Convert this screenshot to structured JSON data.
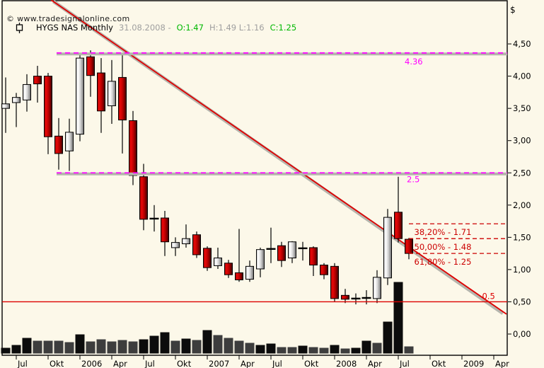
{
  "header": {
    "symbol": "HYGS NAS Monthly",
    "date_label": "31.08.2008 -",
    "open_label": "O:1.47",
    "high_low_label": "H:1.49 L:1.16",
    "close_label": "C:1.25",
    "copyright": "© www.tradesignalonline.com"
  },
  "colors": {
    "background": "#fcf8e9",
    "border": "#000000",
    "text": "#000000",
    "muted_text": "#9f9f9f",
    "green_text": "#00b800",
    "wick": "#000000",
    "bull_body_stops": [
      "#c8c8c8",
      "#ffffff",
      "#d0d0d0",
      "#6e6e6e"
    ],
    "bear_body_stops": [
      "#a80000",
      "#e80808",
      "#b00000",
      "#3c0000"
    ],
    "trendline": "#e00000",
    "line_shadow": "#b5b5ad",
    "magenta_line": "#ff00ff",
    "fib_line": "#cc0000",
    "half_line": "#dd0000",
    "volume_black": "#0c0c0c",
    "volume_gray": "#3d3d3d"
  },
  "chart_data": {
    "type": "candlestick",
    "title": "HYGS NAS Monthly",
    "period_ohlc": {
      "date": "31.08.2008",
      "open": 1.47,
      "high": 1.49,
      "low": 1.16,
      "close": 1.25
    },
    "y_axis": {
      "unit": "$",
      "ticks": [
        {
          "label": "4,50",
          "value": 4.5
        },
        {
          "label": "4,00",
          "value": 4.0
        },
        {
          "label": "3,50",
          "value": 3.5
        },
        {
          "label": "3,00",
          "value": 3.0
        },
        {
          "label": "2,50",
          "value": 2.5
        },
        {
          "label": "2,00",
          "value": 2.0
        },
        {
          "label": "1,50",
          "value": 1.5
        },
        {
          "label": "1,00",
          "value": 1.0
        },
        {
          "label": "0,50",
          "value": 0.5
        },
        {
          "label": "0,00",
          "value": 0.0
        }
      ]
    },
    "x_axis": {
      "ticks": [
        {
          "label": "Jul",
          "index": 1
        },
        {
          "label": "Okt",
          "index": 4
        },
        {
          "label": "2006",
          "index": 7
        },
        {
          "label": "Apr",
          "index": 10
        },
        {
          "label": "Jul",
          "index": 13
        },
        {
          "label": "Okt",
          "index": 16
        },
        {
          "label": "2007",
          "index": 19
        },
        {
          "label": "Apr",
          "index": 22
        },
        {
          "label": "Jul",
          "index": 25
        },
        {
          "label": "Okt",
          "index": 28
        },
        {
          "label": "2008",
          "index": 31
        },
        {
          "label": "Apr",
          "index": 34
        },
        {
          "label": "Jul",
          "index": 37
        },
        {
          "label": "Okt",
          "index": 40
        },
        {
          "label": "2009",
          "index": 43
        },
        {
          "label": "Apr",
          "index": 46
        }
      ]
    },
    "candles": [
      {
        "m": "Jun 2005",
        "o": 3.5,
        "h": 3.98,
        "l": 3.12,
        "c": 3.57,
        "vol_h": 8,
        "vol_shade": "black"
      },
      {
        "m": "Jul 2005",
        "o": 3.59,
        "h": 3.74,
        "l": 3.21,
        "c": 3.67,
        "vol_h": 12,
        "vol_shade": "black"
      },
      {
        "m": "Aug 2005",
        "o": 3.63,
        "h": 4.03,
        "l": 3.45,
        "c": 3.87,
        "vol_h": 22,
        "vol_shade": "black"
      },
      {
        "m": "Sep 2005",
        "o": 4.0,
        "h": 4.16,
        "l": 3.59,
        "c": 3.88,
        "vol_h": 18,
        "vol_shade": "gray"
      },
      {
        "m": "Okt 2005",
        "o": 4.0,
        "h": 4.05,
        "l": 2.79,
        "c": 3.06,
        "vol_h": 18,
        "vol_shade": "gray"
      },
      {
        "m": "Nov 2005",
        "o": 3.07,
        "h": 3.35,
        "l": 2.55,
        "c": 2.8,
        "vol_h": 18,
        "vol_shade": "gray"
      },
      {
        "m": "Dez 2005",
        "o": 2.84,
        "h": 3.34,
        "l": 2.53,
        "c": 3.13,
        "vol_h": 16,
        "vol_shade": "gray"
      },
      {
        "m": "Jan 2006",
        "o": 3.1,
        "h": 4.36,
        "l": 2.99,
        "c": 4.28,
        "vol_h": 27,
        "vol_shade": "black"
      },
      {
        "m": "Feb 2006",
        "o": 4.3,
        "h": 4.4,
        "l": 3.68,
        "c": 4.01,
        "vol_h": 17,
        "vol_shade": "gray"
      },
      {
        "m": "Mär 2006",
        "o": 4.05,
        "h": 4.28,
        "l": 3.12,
        "c": 3.46,
        "vol_h": 20,
        "vol_shade": "gray"
      },
      {
        "m": "Apr 2006",
        "o": 3.54,
        "h": 4.25,
        "l": 3.26,
        "c": 3.92,
        "vol_h": 17,
        "vol_shade": "gray"
      },
      {
        "m": "Mai 2006",
        "o": 3.98,
        "h": 4.34,
        "l": 2.8,
        "c": 3.32,
        "vol_h": 19,
        "vol_shade": "gray"
      },
      {
        "m": "Jun 2006",
        "o": 3.31,
        "h": 3.46,
        "l": 2.31,
        "c": 2.46,
        "vol_h": 17,
        "vol_shade": "gray"
      },
      {
        "m": "Jul 2006",
        "o": 2.44,
        "h": 2.64,
        "l": 1.61,
        "c": 1.78,
        "vol_h": 20,
        "vol_shade": "black"
      },
      {
        "m": "Aug 2006",
        "o": 1.8,
        "h": 2.0,
        "l": 1.59,
        "c": 1.78,
        "vol_h": 25,
        "vol_shade": "black"
      },
      {
        "m": "Sep 2006",
        "o": 1.8,
        "h": 1.91,
        "l": 1.21,
        "c": 1.43,
        "vol_h": 30,
        "vol_shade": "black"
      },
      {
        "m": "Okt 2006",
        "o": 1.34,
        "h": 1.5,
        "l": 1.21,
        "c": 1.42,
        "vol_h": 18,
        "vol_shade": "gray"
      },
      {
        "m": "Nov 2006",
        "o": 1.4,
        "h": 1.7,
        "l": 1.34,
        "c": 1.48,
        "vol_h": 21,
        "vol_shade": "black"
      },
      {
        "m": "Dez 2006",
        "o": 1.54,
        "h": 1.59,
        "l": 1.18,
        "c": 1.23,
        "vol_h": 19,
        "vol_shade": "gray"
      },
      {
        "m": "Jan 2007",
        "o": 1.33,
        "h": 1.36,
        "l": 0.98,
        "c": 1.03,
        "vol_h": 33,
        "vol_shade": "black"
      },
      {
        "m": "Feb 2007",
        "o": 1.06,
        "h": 1.34,
        "l": 1.01,
        "c": 1.18,
        "vol_h": 26,
        "vol_shade": "gray"
      },
      {
        "m": "Mär 2007",
        "o": 1.1,
        "h": 1.15,
        "l": 0.87,
        "c": 0.92,
        "vol_h": 22,
        "vol_shade": "gray"
      },
      {
        "m": "Apr 2007",
        "o": 0.95,
        "h": 1.63,
        "l": 0.81,
        "c": 0.84,
        "vol_h": 18,
        "vol_shade": "gray"
      },
      {
        "m": "Mai 2007",
        "o": 0.85,
        "h": 1.14,
        "l": 0.81,
        "c": 1.05,
        "vol_h": 15,
        "vol_shade": "gray"
      },
      {
        "m": "Jun 2007",
        "o": 1.01,
        "h": 1.34,
        "l": 0.88,
        "c": 1.31,
        "vol_h": 12,
        "vol_shade": "black"
      },
      {
        "m": "Jul 2007",
        "o": 1.32,
        "h": 1.65,
        "l": 1.1,
        "c": 1.32,
        "vol_h": 14,
        "vol_shade": "black"
      },
      {
        "m": "Aug 2007",
        "o": 1.37,
        "h": 1.43,
        "l": 1.04,
        "c": 1.14,
        "vol_h": 9,
        "vol_shade": "gray"
      },
      {
        "m": "Sep 2007",
        "o": 1.18,
        "h": 1.44,
        "l": 1.1,
        "c": 1.43,
        "vol_h": 9,
        "vol_shade": "gray"
      },
      {
        "m": "Okt 2007",
        "o": 1.33,
        "h": 1.43,
        "l": 1.14,
        "c": 1.33,
        "vol_h": 11,
        "vol_shade": "black"
      },
      {
        "m": "Nov 2007",
        "o": 1.34,
        "h": 1.36,
        "l": 0.9,
        "c": 1.07,
        "vol_h": 9,
        "vol_shade": "gray"
      },
      {
        "m": "Dez 2007",
        "o": 1.07,
        "h": 1.1,
        "l": 0.85,
        "c": 0.92,
        "vol_h": 8,
        "vol_shade": "gray"
      },
      {
        "m": "Jan 2008",
        "o": 1.05,
        "h": 1.1,
        "l": 0.5,
        "c": 0.55,
        "vol_h": 12,
        "vol_shade": "black"
      },
      {
        "m": "Feb 2008",
        "o": 0.6,
        "h": 0.7,
        "l": 0.48,
        "c": 0.54,
        "vol_h": 7,
        "vol_shade": "gray"
      },
      {
        "m": "Mär 2008",
        "o": 0.55,
        "h": 0.63,
        "l": 0.46,
        "c": 0.55,
        "vol_h": 8,
        "vol_shade": "black"
      },
      {
        "m": "Apr 2008",
        "o": 0.56,
        "h": 0.68,
        "l": 0.46,
        "c": 0.56,
        "vol_h": 18,
        "vol_shade": "black"
      },
      {
        "m": "Mai 2008",
        "o": 0.55,
        "h": 0.99,
        "l": 0.48,
        "c": 0.88,
        "vol_h": 15,
        "vol_shade": "gray"
      },
      {
        "m": "Jun 2008",
        "o": 0.87,
        "h": 1.94,
        "l": 0.76,
        "c": 1.81,
        "vol_h": 45,
        "vol_shade": "black"
      },
      {
        "m": "Jul 2008",
        "o": 1.89,
        "h": 2.44,
        "l": 1.42,
        "c": 1.48,
        "vol_h": 101,
        "vol_shade": "black"
      },
      {
        "m": "Aug 2008",
        "o": 1.47,
        "h": 1.49,
        "l": 1.16,
        "c": 1.25,
        "vol_h": 10,
        "vol_shade": "gray"
      }
    ],
    "overlays": {
      "trendline": {
        "x1_index": 4.3,
        "y1_price": 5.18,
        "x2_index": 47.2,
        "y2_price": 0.32
      },
      "hlines": [
        {
          "price": 4.36,
          "label": "4.36",
          "style": "dashed",
          "color": "#ff00ff",
          "shadow": true,
          "start_index": 4.8,
          "label_index": 37.6,
          "label_dy": 16
        },
        {
          "price": 2.5,
          "label": "2.5",
          "style": "dashed",
          "color": "#ff00ff",
          "shadow": true,
          "start_index": 4.8,
          "label_index": 37.8,
          "label_dy": 13
        },
        {
          "price": 0.5,
          "label": "0.5",
          "style": "solid",
          "color": "#dd0000",
          "shadow": false,
          "start_index": -0.33,
          "label_index": 44.9,
          "label_dy": -4
        }
      ],
      "fib_levels": {
        "start_index": 38.0,
        "label_index": 38.5,
        "label_dy": 16,
        "levels": [
          {
            "label": "38,20% - 1.71",
            "price": 1.71
          },
          {
            "label": "50,00% - 1.48",
            "price": 1.48
          },
          {
            "label": "61,80% - 1.25",
            "price": 1.25
          }
        ]
      }
    },
    "legend_position": "none",
    "grid": false
  }
}
